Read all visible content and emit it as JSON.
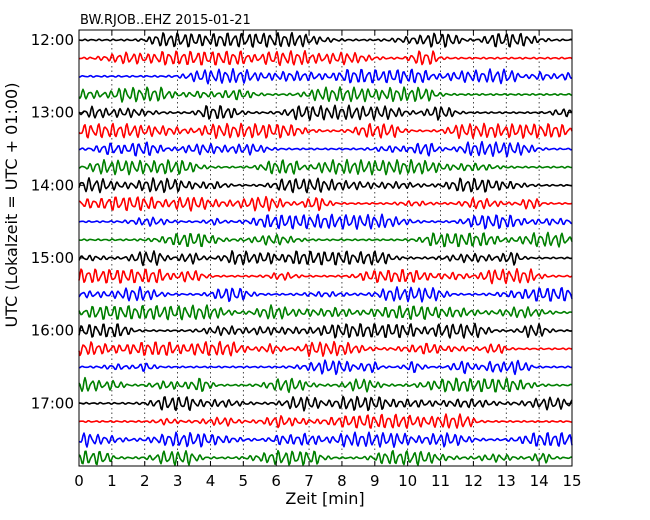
{
  "chart_data": {
    "type": "line",
    "title": "BW.RJOB..EHZ 2015-01-21",
    "xlabel": "Zeit  [min]",
    "ylabel": "UTC (Lokalzeit = UTC + 01:00)",
    "xlim": [
      0,
      15
    ],
    "x_ticks": [
      "0",
      "1",
      "2",
      "3",
      "4",
      "5",
      "6",
      "7",
      "8",
      "9",
      "10",
      "11",
      "12",
      "13",
      "14",
      "15"
    ],
    "y_ticks": [
      "12:00",
      "13:00",
      "14:00",
      "15:00",
      "16:00",
      "17:00"
    ],
    "grid": true,
    "trace_interval_minutes": 15,
    "start_time": "12:00",
    "trace_count": 24,
    "trace_colors": [
      "#000000",
      "#ff0000",
      "#0000ff",
      "#008000"
    ]
  }
}
